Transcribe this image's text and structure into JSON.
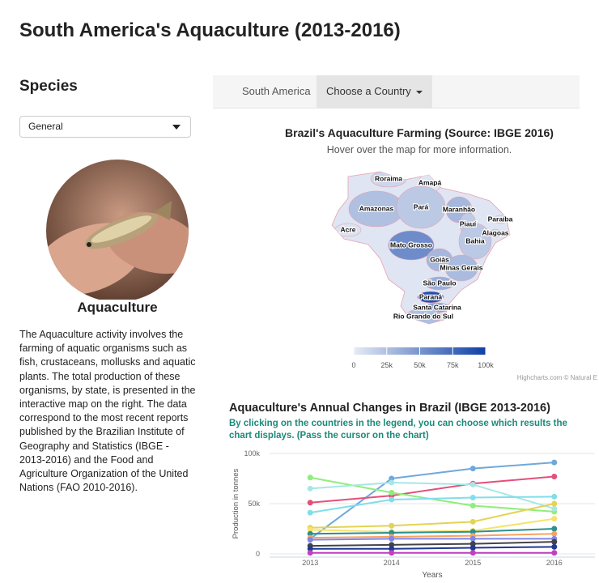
{
  "header": {
    "title": "South America's Aquaculture (2013-2016)"
  },
  "sidebar": {
    "heading": "Species",
    "select": "General",
    "image_caption": "Aquaculture",
    "description": "The Aquaculture activity involves the farming of aquatic organisms such as fish, crustaceans, mollusks and aquatic plants. The total production of these organisms, by state, is presented in the interactive map on the right. The data correspond to the most recent reports published by the Brazilian Institute of Geography and Statistics (IBGE - 2013-2016) and the Food and Agriculture Organization of the United Nations (FAO 2010-2016)."
  },
  "tabs": [
    "South America",
    "Choose a Country"
  ],
  "chart_data": [
    {
      "type": "map",
      "title": "Brazil's Aquaculture Farming (Source: IBGE 2016)",
      "subtitle": "Hover over the map for more information.",
      "categories": [
        "Roraima",
        "Amapá",
        "Amazonas",
        "Pará",
        "Maranhão",
        "Piauí",
        "Paraíba",
        "Alagoas",
        "Acre",
        "Mato Grosso",
        "Bahia",
        "Goiás",
        "Minas Gerais",
        "São Paulo",
        "Paraná",
        "Santa Catarina",
        "Rio Grande do Sul"
      ],
      "values": [
        12000,
        3000,
        25000,
        20000,
        30000,
        18000,
        8000,
        10000,
        5000,
        55000,
        20000,
        30000,
        28000,
        35000,
        90000,
        40000,
        25000
      ],
      "colorlim": [
        0,
        100000
      ],
      "colorticks": [
        0,
        {
          "value": 25000,
          "label": "25k"
        },
        {
          "value": 50000,
          "label": "50k"
        },
        {
          "value": 75000,
          "label": "75k"
        },
        {
          "value": 100000,
          "label": "100k"
        }
      ],
      "colors": [
        "#e6ebf5",
        "#0d3fa6"
      ],
      "credits": "Highcharts.com © Natural E"
    },
    {
      "type": "line",
      "title": "Aquaculture's Annual Changes in Brazil (IBGE 2013-2016)",
      "subtitle": "By clicking on the countries in the legend, you can choose which results the chart displays. (Pass the cursor on the chart)",
      "categories": [
        "2013",
        "2014",
        "2015",
        "2016"
      ],
      "series": [
        {
          "color": "#6fa8dc",
          "values": [
            15000,
            75000,
            85000,
            91000
          ]
        },
        {
          "color": "#e4507a",
          "values": [
            51000,
            58000,
            70000,
            77000
          ]
        },
        {
          "color": "#90ed7d",
          "values": [
            76000,
            61000,
            48000,
            42000
          ]
        },
        {
          "color": "#a8e6e6",
          "values": [
            65000,
            71000,
            69000,
            45000
          ]
        },
        {
          "color": "#80deea",
          "values": [
            41000,
            54000,
            56000,
            57000
          ]
        },
        {
          "color": "#e4d354",
          "values": [
            26000,
            28000,
            32000,
            50000
          ]
        },
        {
          "color": "#f7e36b",
          "values": [
            24000,
            22000,
            23000,
            35000
          ]
        },
        {
          "color": "#2b908f",
          "values": [
            20000,
            21000,
            22000,
            25000
          ]
        },
        {
          "color": "#f7a35c",
          "values": [
            16000,
            17000,
            18000,
            20000
          ]
        },
        {
          "color": "#8085e9",
          "values": [
            14000,
            15000,
            15000,
            15000
          ]
        },
        {
          "color": "#434348",
          "values": [
            8000,
            9000,
            10000,
            12000
          ]
        },
        {
          "color": "#1f3a93",
          "values": [
            5000,
            5000,
            6000,
            7000
          ]
        },
        {
          "color": "#c040c0",
          "values": [
            1000,
            1000,
            1000,
            1000
          ]
        }
      ],
      "ylim": [
        0,
        100000
      ],
      "yticks": [
        0,
        {
          "value": 50000,
          "label": "50k"
        },
        {
          "value": 100000,
          "label": "100k"
        }
      ],
      "ylabel": "Production in tonnes",
      "xlabel": "Years",
      "grid": true
    }
  ]
}
